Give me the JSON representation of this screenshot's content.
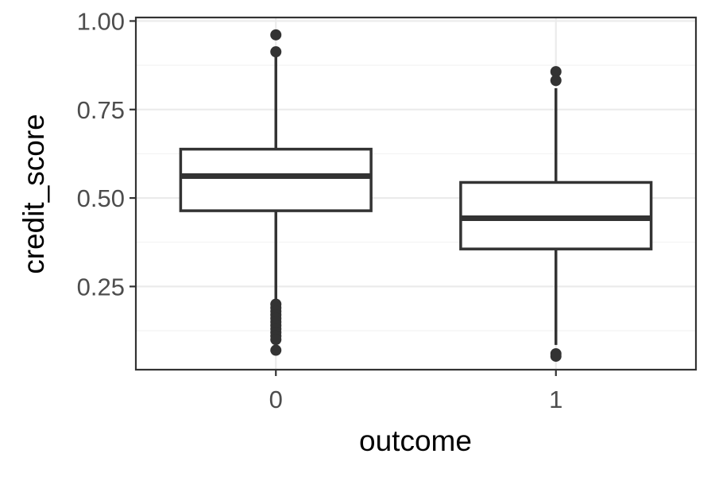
{
  "chart_data": {
    "type": "boxplot",
    "title": "",
    "xlabel": "outcome",
    "ylabel": "credit_score",
    "categories": [
      "0",
      "1"
    ],
    "ylim": [
      0.015,
      1.01
    ],
    "yticks": [
      0.25,
      0.5,
      0.75,
      1.0
    ],
    "ytick_labels": [
      "0.25",
      "0.50",
      "0.75",
      "1.00"
    ],
    "grid": true,
    "legend": "none",
    "colors": {
      "box_stroke": "#333333",
      "box_fill": "#ffffff",
      "grid_major": "#ebebeb",
      "grid_minor": "#f2f2f2",
      "panel_border": "#333333",
      "tick_label": "#4d4d4d",
      "axis_title": "#000000"
    },
    "boxes": [
      {
        "category": "0",
        "whisker_low": 0.205,
        "q1": 0.464,
        "median": 0.562,
        "q3": 0.638,
        "whisker_high": 0.9,
        "outliers": [
          0.961,
          0.913,
          0.2,
          0.19,
          0.18,
          0.17,
          0.16,
          0.15,
          0.14,
          0.13,
          0.12,
          0.11,
          0.1,
          0.07
        ]
      },
      {
        "category": "1",
        "whisker_low": 0.085,
        "q1": 0.356,
        "median": 0.443,
        "q3": 0.544,
        "whisker_high": 0.81,
        "outliers": [
          0.857,
          0.832,
          0.06,
          0.053
        ]
      }
    ]
  }
}
